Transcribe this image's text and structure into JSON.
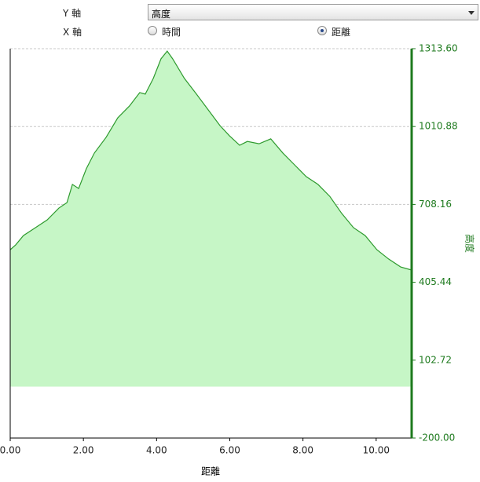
{
  "controls": {
    "y_axis_label": "Y 軸",
    "y_axis_value": "高度",
    "x_axis_label": "X 軸",
    "x_options": [
      "時間",
      "距離"
    ]
  },
  "chart_data": {
    "type": "area",
    "x_label": "距離",
    "y_label": "高度",
    "x": [
      0,
      0.15,
      0.36,
      0.69,
      1.01,
      1.33,
      1.55,
      1.7,
      1.87,
      2.08,
      2.3,
      2.62,
      2.94,
      3.26,
      3.54,
      3.69,
      3.91,
      4.12,
      4.29,
      4.44,
      4.76,
      5.09,
      5.41,
      5.73,
      5.99,
      6.27,
      6.48,
      6.8,
      7.12,
      7.45,
      7.77,
      8.09,
      8.41,
      8.73,
      9.06,
      9.38,
      9.7,
      10.02,
      10.34,
      10.67,
      10.97
    ],
    "series": [
      {
        "name": "高度",
        "color": "#2e9a2e",
        "fill": "#c6f6c6",
        "values": [
          532,
          551,
          587,
          618,
          648,
          694,
          715,
          786,
          770,
          847,
          908,
          969,
          1045,
          1091,
          1143,
          1137,
          1198,
          1274,
          1304,
          1274,
          1198,
          1137,
          1076,
          1015,
          975,
          938,
          953,
          944,
          963,
          908,
          862,
          816,
          786,
          740,
          673,
          618,
          587,
          532,
          496,
          465,
          453
        ]
      }
    ],
    "xlim": [
      0,
      10.97
    ],
    "xticks": [
      {
        "value": 0,
        "label": "0.00"
      },
      {
        "value": 2,
        "label": "2.00"
      },
      {
        "value": 4,
        "label": "4.00"
      },
      {
        "value": 6,
        "label": "6.00"
      },
      {
        "value": 8,
        "label": "8.00"
      },
      {
        "value": 10,
        "label": "10.00"
      }
    ],
    "ylim": [
      -200,
      1313.6
    ],
    "yticks": [
      {
        "value": -200,
        "label": "-200.00"
      },
      102.72,
      405.44,
      708.16,
      1010.88,
      {
        "value": 1313.6,
        "label": "1313.60"
      }
    ],
    "axis_color": "#1e7a1e",
    "grid": true
  }
}
